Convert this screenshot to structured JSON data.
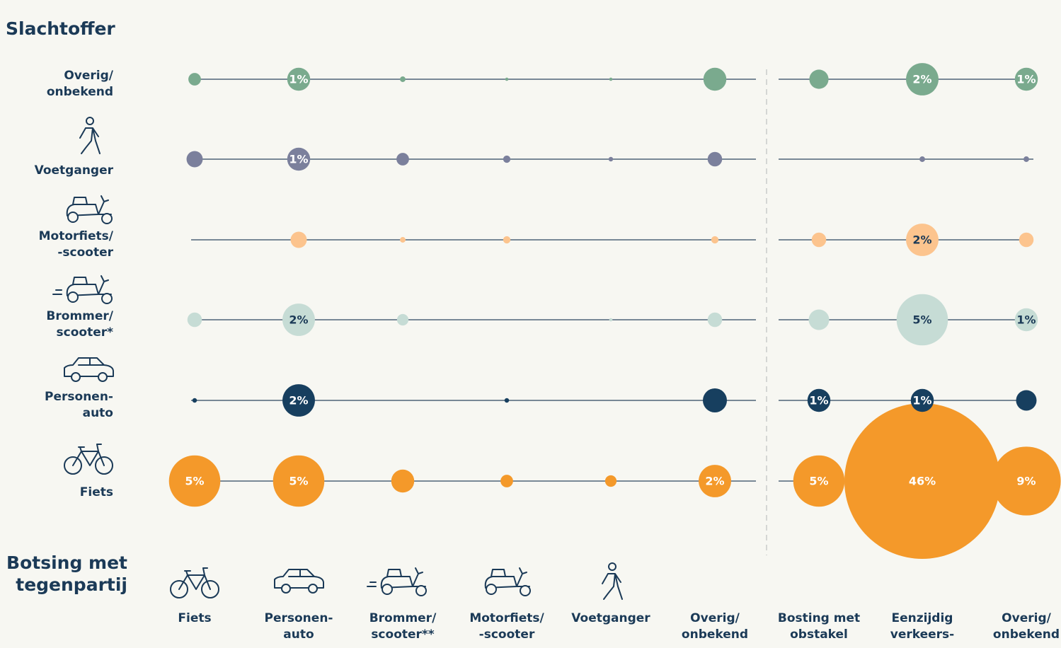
{
  "chart_data": {
    "type": "bubble-matrix",
    "title": "Slachtoffer",
    "x_label": "Botsing met tegenpartij",
    "categories": [
      "Fiets",
      "Personen-\nauto",
      "Brommer/\nscooter**",
      "Motorfiets/\n-scooter",
      "Voetganger",
      "Overig/\nonbekend",
      "Bosting met\nobstakel",
      "Eenzijdig\nverkeers-",
      "Overig/\nonbekend"
    ],
    "series": [
      {
        "name": "Overig/\nonbekend",
        "color": "#7aaa8e",
        "label_color": "#ffffff",
        "values": [
          0.3,
          1,
          0.06,
          0.02,
          0.02,
          1,
          0.7,
          2,
          1
        ],
        "value_labels": [
          null,
          "1%",
          null,
          null,
          null,
          null,
          null,
          "2%",
          "1%"
        ]
      },
      {
        "name": "Voetganger",
        "color": "#7b809c",
        "label_color": "#ffffff",
        "values": [
          0.5,
          1,
          0.3,
          0.1,
          0.04,
          0.4,
          null,
          0.06,
          0.06
        ],
        "value_labels": [
          null,
          "1%",
          null,
          null,
          null,
          null,
          null,
          null,
          null
        ]
      },
      {
        "name": "Motorfiets/\n-scooter",
        "color": "#fcc48e",
        "label_color": "#1b3a57",
        "values": [
          null,
          0.5,
          0.06,
          0.1,
          null,
          0.1,
          0.4,
          2,
          0.4
        ],
        "value_labels": [
          null,
          null,
          null,
          null,
          null,
          null,
          null,
          "2%",
          null
        ]
      },
      {
        "name": "Brommer/\nscooter*",
        "color": "#c6dcd5",
        "label_color": "#1b3a57",
        "values": [
          0.4,
          2,
          0.25,
          null,
          0.02,
          0.4,
          0.8,
          5,
          1
        ],
        "value_labels": [
          null,
          "2%",
          null,
          null,
          null,
          null,
          null,
          "5%",
          "1%"
        ]
      },
      {
        "name": "Personen-\nauto",
        "color": "#173f5f",
        "label_color": "#ffffff",
        "values": [
          0.04,
          2,
          null,
          0.04,
          null,
          1.1,
          1,
          1,
          0.8
        ],
        "value_labels": [
          null,
          "2%",
          null,
          null,
          null,
          null,
          "1%",
          "1%",
          null
        ]
      },
      {
        "name": "Fiets",
        "color": "#f4992a",
        "label_color": "#ffffff",
        "values": [
          5,
          5,
          1,
          0.3,
          0.25,
          2,
          5,
          46,
          9
        ],
        "value_labels": [
          "5%",
          "5%",
          null,
          null,
          null,
          "2%",
          "5%",
          "46%",
          "9%"
        ]
      }
    ]
  }
}
